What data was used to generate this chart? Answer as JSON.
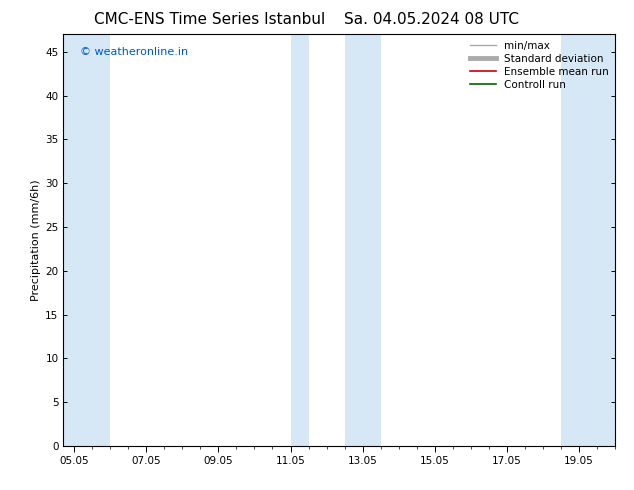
{
  "title_left": "CMC-ENS Time Series Istanbul",
  "title_right": "Sa. 04.05.2024 08 UTC",
  "ylabel": "Precipitation (mm/6h)",
  "watermark": "© weatheronline.in",
  "watermark_color": "#0055cc",
  "ylim": [
    0,
    47
  ],
  "yticks": [
    0,
    5,
    10,
    15,
    20,
    25,
    30,
    35,
    40,
    45
  ],
  "xtick_labels": [
    "05.05",
    "07.05",
    "09.05",
    "11.05",
    "13.05",
    "15.05",
    "17.05",
    "19.05"
  ],
  "xtick_positions": [
    0,
    2,
    4,
    6,
    8,
    10,
    12,
    14
  ],
  "xlim": [
    -0.3,
    15.0
  ],
  "bg_color": "#ffffff",
  "plot_bg_color": "#ffffff",
  "shaded_bands": [
    {
      "xstart": -0.3,
      "xend": 1.0,
      "color": "#d6e8f5"
    },
    {
      "xstart": 6.0,
      "xend": 6.5,
      "color": "#d6e8f5"
    },
    {
      "xstart": 7.5,
      "xend": 8.5,
      "color": "#d6e8f5"
    },
    {
      "xstart": 13.5,
      "xend": 15.0,
      "color": "#d6e8f5"
    }
  ],
  "legend_items": [
    {
      "label": "min/max",
      "color": "#aaaaaa",
      "lw": 1.0
    },
    {
      "label": "Standard deviation",
      "color": "#aaaaaa",
      "lw": 3.5
    },
    {
      "label": "Ensemble mean run",
      "color": "#cc0000",
      "lw": 1.2
    },
    {
      "label": "Controll run",
      "color": "#006600",
      "lw": 1.2
    }
  ],
  "title_fontsize": 11,
  "axis_label_fontsize": 8,
  "tick_fontsize": 7.5,
  "legend_fontsize": 7.5,
  "watermark_fontsize": 8
}
